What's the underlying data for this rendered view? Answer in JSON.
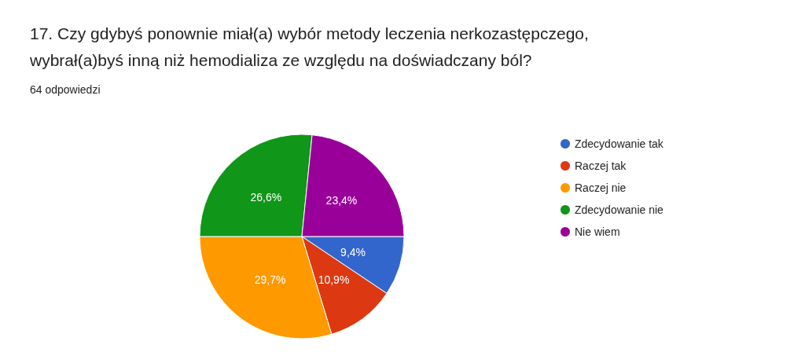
{
  "chart_data": {
    "type": "pie",
    "title": "17. Czy gdybyś ponownie miał(a) wybór metody leczenia nerkozastępczego,\nwybrał(a)byś inną niż hemodializa ze względu na doświadczany ból?",
    "subtitle": "64 odpowiedzi",
    "categories": [
      "Zdecydowanie tak",
      "Raczej tak",
      "Raczej nie",
      "Zdecydowanie nie",
      "Nie wiem"
    ],
    "values": [
      9.4,
      10.9,
      29.7,
      26.6,
      23.4
    ],
    "colors": [
      "#3366cc",
      "#dc3912",
      "#ff9900",
      "#109618",
      "#990099"
    ],
    "value_labels": [
      "9,4%",
      "10,9%",
      "29,7%",
      "26,6%",
      "23,4%"
    ],
    "legend": "right"
  }
}
